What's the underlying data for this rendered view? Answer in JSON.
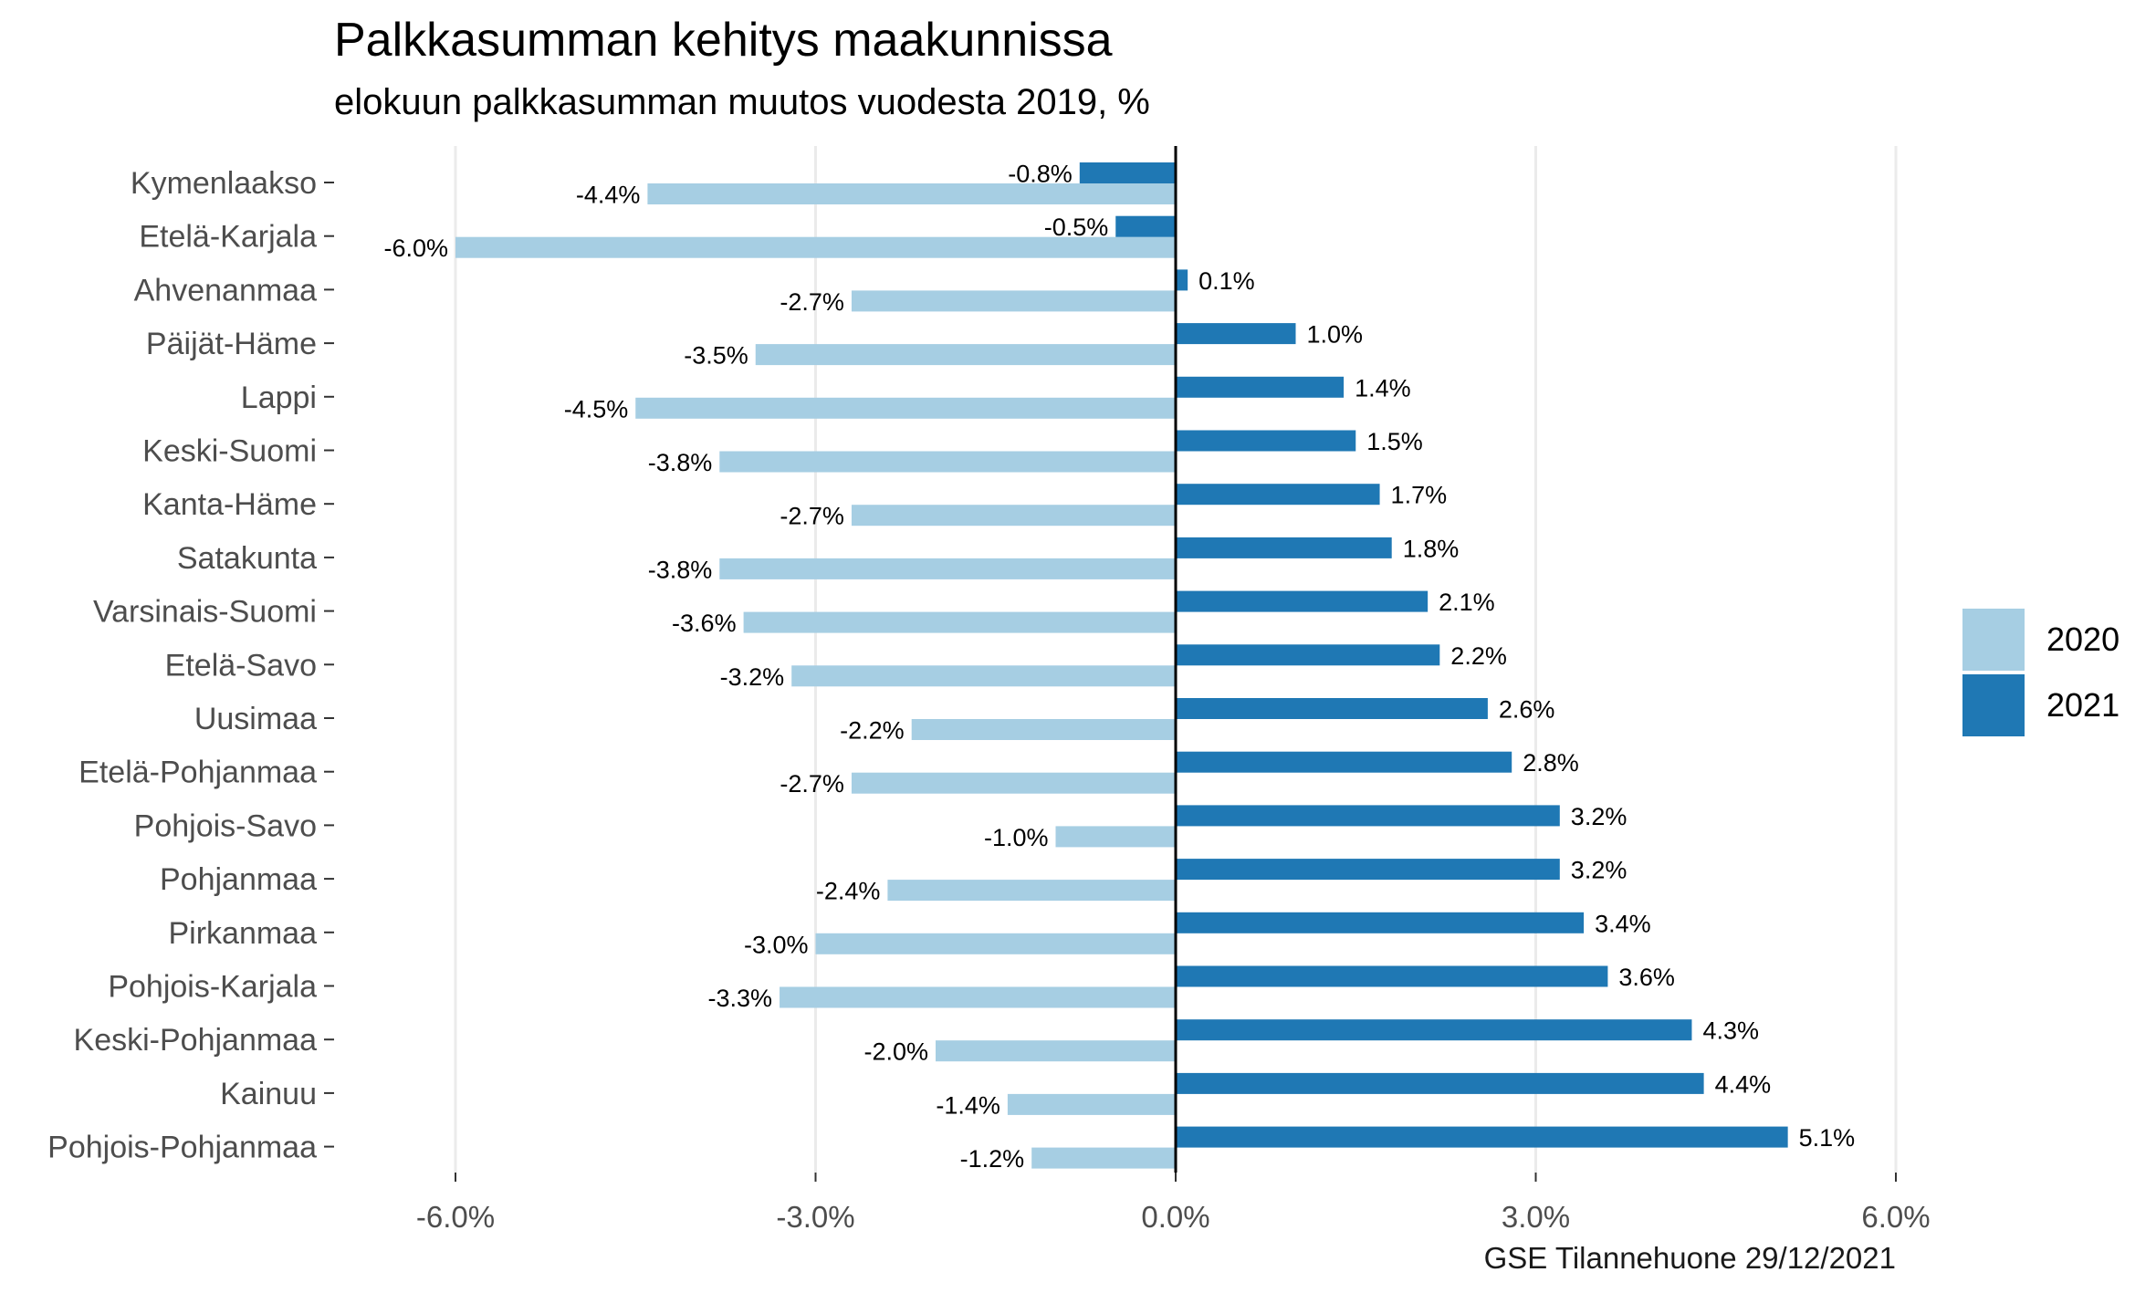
{
  "chart_data": {
    "type": "bar",
    "orientation": "horizontal",
    "title": "Palkkasumman kehitys maakunnissa",
    "subtitle": "elokuun palkkasumman muutos vuodesta 2019, %",
    "caption": "GSE Tilannehuone 29/12/2021",
    "categories": [
      "Kymenlaakso",
      "Etelä-Karjala",
      "Ahvenanmaa",
      "Päijät-Häme",
      "Lappi",
      "Keski-Suomi",
      "Kanta-Häme",
      "Satakunta",
      "Varsinais-Suomi",
      "Etelä-Savo",
      "Uusimaa",
      "Etelä-Pohjanmaa",
      "Pohjois-Savo",
      "Pohjanmaa",
      "Pirkanmaa",
      "Pohjois-Karjala",
      "Keski-Pohjanmaa",
      "Kainuu",
      "Pohjois-Pohjanmaa"
    ],
    "series": [
      {
        "name": "2020",
        "color": "#a6cee3",
        "values": [
          -4.4,
          -6.0,
          -2.7,
          -3.5,
          -4.5,
          -3.8,
          -2.7,
          -3.8,
          -3.6,
          -3.2,
          -2.2,
          -2.7,
          -1.0,
          -2.4,
          -3.0,
          -3.3,
          -2.0,
          -1.4,
          -1.2
        ],
        "labels": [
          "-4.4%",
          "-6.0%",
          "-2.7%",
          "-3.5%",
          "-4.5%",
          "-3.8%",
          "-2.7%",
          "-3.8%",
          "-3.6%",
          "-3.2%",
          "-2.2%",
          "-2.7%",
          "-1.0%",
          "-2.4%",
          "-3.0%",
          "-3.3%",
          "-2.0%",
          "-1.4%",
          "-1.2%"
        ]
      },
      {
        "name": "2021",
        "color": "#1f78b4",
        "values": [
          -0.8,
          -0.5,
          0.1,
          1.0,
          1.4,
          1.5,
          1.7,
          1.8,
          2.1,
          2.2,
          2.6,
          2.8,
          3.2,
          3.2,
          3.4,
          3.6,
          4.3,
          4.4,
          5.1
        ],
        "labels": [
          "-0.8%",
          "-0.5%",
          "0.1%",
          "1.0%",
          "1.4%",
          "1.5%",
          "1.7%",
          "1.8%",
          "2.1%",
          "2.2%",
          "2.6%",
          "2.8%",
          "3.2%",
          "3.2%",
          "3.4%",
          "3.6%",
          "4.3%",
          "4.4%",
          "5.1%"
        ]
      }
    ],
    "xlim": [
      -6.8,
      6.8
    ],
    "x_ticks": [
      -6,
      -3,
      0,
      3,
      6
    ],
    "x_tick_labels": [
      "-6.0%",
      "-3.0%",
      "0.0%",
      "3.0%",
      "6.0%"
    ],
    "xlabel": "",
    "ylabel": "",
    "grid": true,
    "legend_position": "right"
  }
}
